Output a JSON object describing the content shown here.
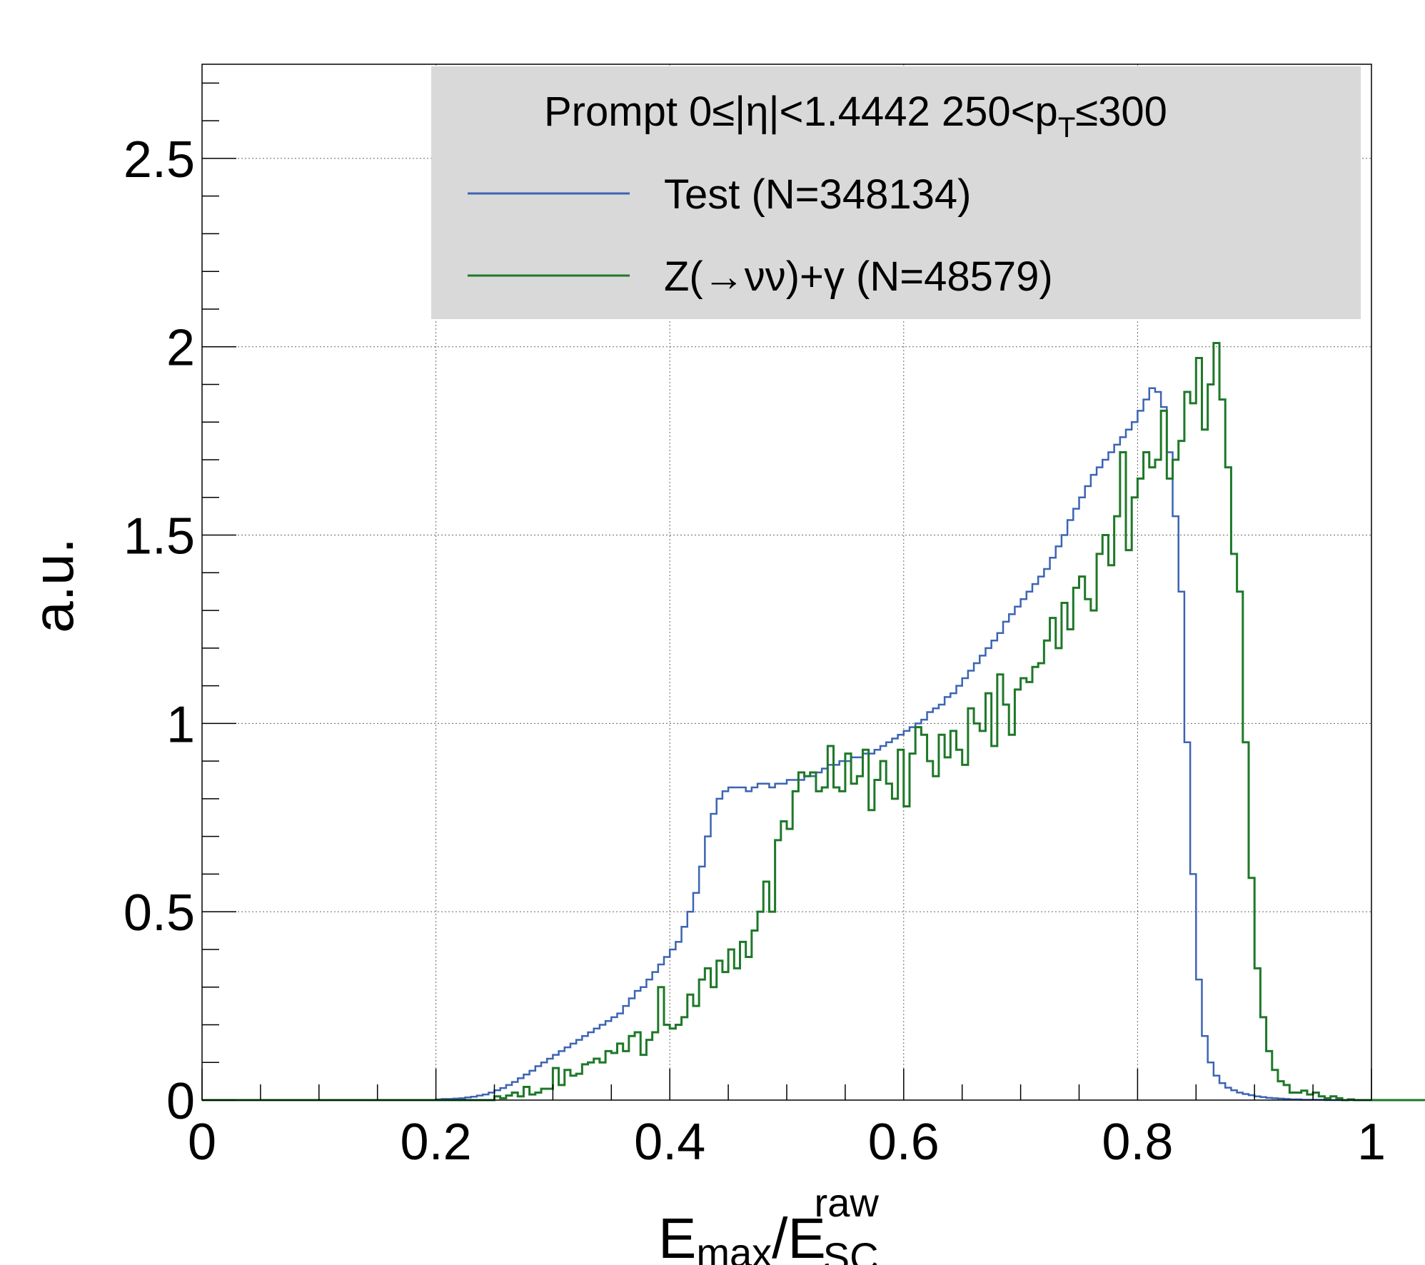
{
  "chart_data": {
    "type": "line",
    "title": "",
    "xlabel": {
      "main": "E",
      "sub": "max",
      "slash": "/E",
      "sub2": "SC",
      "sup2": "raw"
    },
    "ylabel": "a.u.",
    "xlim": [
      0,
      1
    ],
    "ylim": [
      0,
      2.75
    ],
    "grid": true,
    "xticks": [
      0,
      0.2,
      0.4,
      0.6,
      0.8,
      1
    ],
    "xtick_labels": [
      "0",
      "0.2",
      "0.4",
      "0.6",
      "0.8",
      "1"
    ],
    "yticks": [
      0,
      0.5,
      1,
      1.5,
      2,
      2.5
    ],
    "ytick_labels": [
      "0",
      "0.5",
      "1",
      "1.5",
      "2",
      "2.5"
    ],
    "legend": {
      "position": "top-right",
      "header": {
        "prefix": "Prompt  0≤|η|<1.4442  250<p",
        "sub": "T",
        "suffix": "≤300"
      },
      "entries": [
        {
          "label": "Test (N=348134)",
          "color": "#3c64b4"
        },
        {
          "label": "Z(→νν)+γ (N=48579)",
          "color": "#1e7828"
        }
      ]
    },
    "colors": {
      "legend_bg": "#d9d9d9",
      "grid": "#666666",
      "axis": "#000000"
    },
    "bin_width": 0.005,
    "x_start": 0,
    "series": [
      {
        "name": "Test (N=348134)",
        "color": "#3c64b4",
        "values": [
          0,
          0,
          0,
          0,
          0,
          0,
          0,
          0,
          0,
          0,
          0,
          0,
          0,
          0,
          0,
          0,
          0,
          0,
          0,
          0,
          0,
          0,
          0,
          0,
          0,
          0,
          0,
          0,
          0,
          0,
          0,
          0,
          0,
          0,
          0,
          0,
          0,
          0,
          0,
          0,
          0.002,
          0.003,
          0.003,
          0.004,
          0.005,
          0.007,
          0.009,
          0.012,
          0.015,
          0.02,
          0.026,
          0.032,
          0.04,
          0.048,
          0.058,
          0.068,
          0.078,
          0.09,
          0.1,
          0.11,
          0.12,
          0.13,
          0.14,
          0.15,
          0.16,
          0.17,
          0.18,
          0.19,
          0.2,
          0.21,
          0.22,
          0.23,
          0.25,
          0.27,
          0.29,
          0.3,
          0.32,
          0.34,
          0.36,
          0.38,
          0.4,
          0.42,
          0.46,
          0.5,
          0.55,
          0.62,
          0.7,
          0.76,
          0.8,
          0.82,
          0.83,
          0.83,
          0.83,
          0.82,
          0.83,
          0.84,
          0.84,
          0.83,
          0.84,
          0.84,
          0.85,
          0.85,
          0.85,
          0.86,
          0.86,
          0.87,
          0.88,
          0.89,
          0.89,
          0.9,
          0.9,
          0.91,
          0.91,
          0.92,
          0.92,
          0.93,
          0.94,
          0.95,
          0.96,
          0.97,
          0.98,
          0.99,
          1.0,
          1.01,
          1.03,
          1.04,
          1.05,
          1.07,
          1.08,
          1.1,
          1.12,
          1.14,
          1.16,
          1.18,
          1.2,
          1.22,
          1.24,
          1.27,
          1.29,
          1.31,
          1.33,
          1.35,
          1.37,
          1.39,
          1.41,
          1.44,
          1.47,
          1.5,
          1.54,
          1.57,
          1.6,
          1.63,
          1.66,
          1.68,
          1.7,
          1.72,
          1.74,
          1.76,
          1.78,
          1.8,
          1.83,
          1.86,
          1.89,
          1.88,
          1.84,
          1.72,
          1.55,
          1.35,
          0.95,
          0.6,
          0.32,
          0.17,
          0.1,
          0.065,
          0.045,
          0.033,
          0.026,
          0.02,
          0.016,
          0.013,
          0.01,
          0.008,
          0.006,
          0.005,
          0.004,
          0.003,
          0.002,
          0.002,
          0.001,
          0.001,
          0.001,
          0.001,
          0,
          0,
          0,
          0,
          0,
          0,
          0,
          0,
          0,
          0,
          0,
          0,
          0,
          0,
          0,
          0,
          0,
          0,
          0,
          0,
          0,
          0,
          0,
          0,
          0,
          0,
          0
        ]
      },
      {
        "name": "Z(→νν)+γ (N=48579)",
        "color": "#1e7828",
        "values": [
          0,
          0,
          0,
          0,
          0,
          0,
          0,
          0,
          0,
          0,
          0,
          0,
          0,
          0,
          0,
          0,
          0,
          0,
          0,
          0,
          0,
          0,
          0,
          0,
          0,
          0,
          0,
          0,
          0,
          0,
          0,
          0,
          0,
          0,
          0,
          0,
          0,
          0,
          0,
          0,
          0,
          0,
          0,
          0,
          0,
          0,
          0,
          0,
          0,
          0,
          0.01,
          0.005,
          0.012,
          0.02,
          0.01,
          0.035,
          0.015,
          0.02,
          0.03,
          0.03,
          0.085,
          0.04,
          0.08,
          0.065,
          0.07,
          0.095,
          0.1,
          0.11,
          0.1,
          0.13,
          0.125,
          0.15,
          0.13,
          0.17,
          0.18,
          0.12,
          0.16,
          0.18,
          0.3,
          0.2,
          0.19,
          0.2,
          0.22,
          0.28,
          0.25,
          0.32,
          0.35,
          0.3,
          0.37,
          0.34,
          0.4,
          0.35,
          0.42,
          0.38,
          0.45,
          0.5,
          0.58,
          0.5,
          0.69,
          0.74,
          0.72,
          0.82,
          0.87,
          0.86,
          0.87,
          0.82,
          0.83,
          0.94,
          0.83,
          0.82,
          0.92,
          0.84,
          0.86,
          0.93,
          0.77,
          0.85,
          0.9,
          0.84,
          0.8,
          0.93,
          0.78,
          0.92,
          0.99,
          0.97,
          0.9,
          0.86,
          0.97,
          0.91,
          0.98,
          0.93,
          0.89,
          1.04,
          1.0,
          0.98,
          1.08,
          0.94,
          1.13,
          1.05,
          0.97,
          1.09,
          1.12,
          1.11,
          1.15,
          1.16,
          1.22,
          1.28,
          1.2,
          1.32,
          1.25,
          1.36,
          1.39,
          1.33,
          1.3,
          1.45,
          1.5,
          1.42,
          1.55,
          1.72,
          1.46,
          1.6,
          1.65,
          1.72,
          1.68,
          1.7,
          1.83,
          1.65,
          1.7,
          1.75,
          1.88,
          1.85,
          1.97,
          1.78,
          1.9,
          2.01,
          1.86,
          1.68,
          1.45,
          1.35,
          0.95,
          0.59,
          0.35,
          0.22,
          0.13,
          0.08,
          0.05,
          0.04,
          0.02,
          0.02,
          0.025,
          0.015,
          0.02,
          0.01,
          0.005,
          0.01,
          0.005,
          0,
          0.002,
          0,
          0,
          0,
          0,
          0,
          0,
          0,
          0,
          0,
          0,
          0,
          0,
          0,
          0,
          0,
          0,
          0,
          0,
          0,
          0,
          0,
          0,
          0
        ]
      }
    ]
  }
}
